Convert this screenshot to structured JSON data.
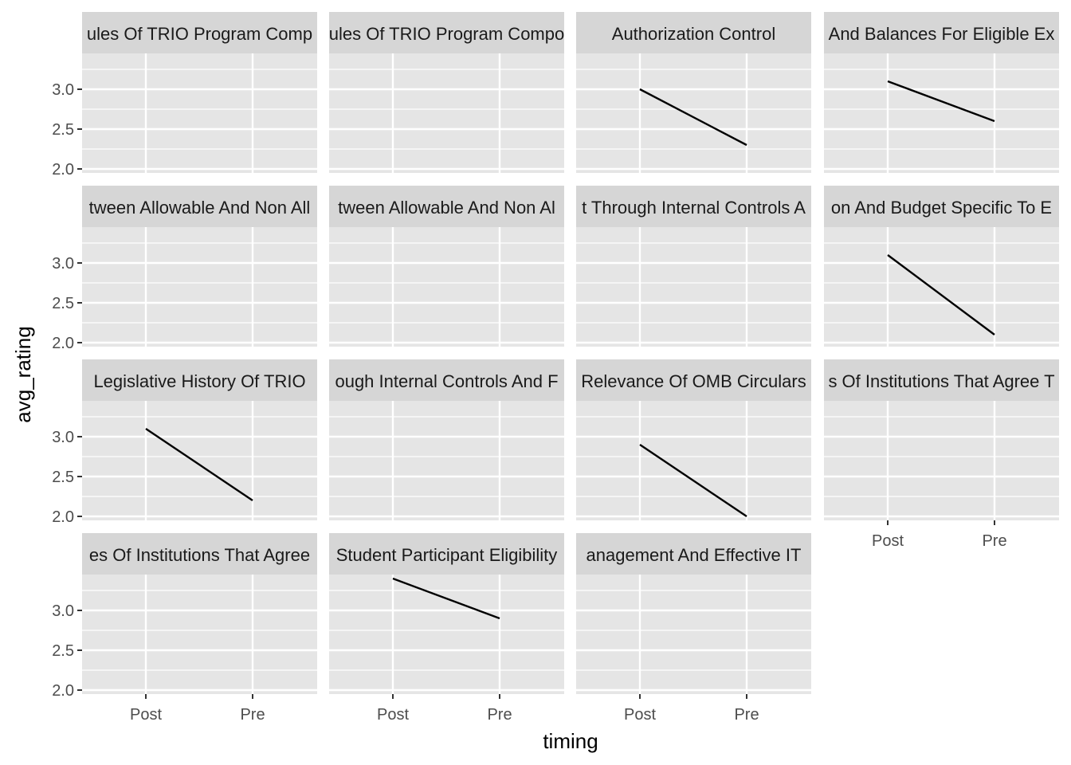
{
  "chart_data": {
    "type": "line",
    "layout": "facet_wrap",
    "xlabel": "timing",
    "ylabel": "avg_rating",
    "x_categories": [
      "Post",
      "Pre"
    ],
    "y_ticks": [
      "2.0",
      "2.5",
      "3.0"
    ],
    "ylim": [
      1.95,
      3.45
    ],
    "grid": true,
    "colors": {
      "panel_bg": "#e5e5e5",
      "strip_bg": "#d6d6d6",
      "grid": "#ffffff",
      "line": "#000000"
    },
    "facets": [
      {
        "title": "ules Of TRIO Program Comp",
        "x": [],
        "y": []
      },
      {
        "title": "ules Of TRIO Program Compo",
        "x": [],
        "y": []
      },
      {
        "title": "Authorization Control",
        "x": [
          "Post",
          "Pre"
        ],
        "y": [
          3.0,
          2.3
        ]
      },
      {
        "title": "And Balances For Eligible Ex",
        "x": [
          "Post",
          "Pre"
        ],
        "y": [
          3.1,
          2.6
        ]
      },
      {
        "title": "tween Allowable And Non All",
        "x": [],
        "y": []
      },
      {
        "title": "tween Allowable And Non Al",
        "x": [],
        "y": []
      },
      {
        "title": "t Through Internal Controls A",
        "x": [],
        "y": []
      },
      {
        "title": "on And Budget Specific To E",
        "x": [
          "Post",
          "Pre"
        ],
        "y": [
          3.1,
          2.1
        ]
      },
      {
        "title": "Legislative History Of TRIO",
        "x": [
          "Post",
          "Pre"
        ],
        "y": [
          3.1,
          2.2
        ]
      },
      {
        "title": "ough Internal Controls And F",
        "x": [],
        "y": []
      },
      {
        "title": "Relevance Of OMB Circulars",
        "x": [
          "Post",
          "Pre"
        ],
        "y": [
          2.9,
          2.0
        ]
      },
      {
        "title": "s Of Institutions That Agree T",
        "x": [],
        "y": []
      },
      {
        "title": "es Of Institutions That Agree",
        "x": [],
        "y": []
      },
      {
        "title": "Student Participant Eligibility",
        "x": [
          "Post",
          "Pre"
        ],
        "y": [
          3.4,
          2.9
        ]
      },
      {
        "title": "anagement And Effective IT",
        "x": [],
        "y": []
      }
    ]
  }
}
